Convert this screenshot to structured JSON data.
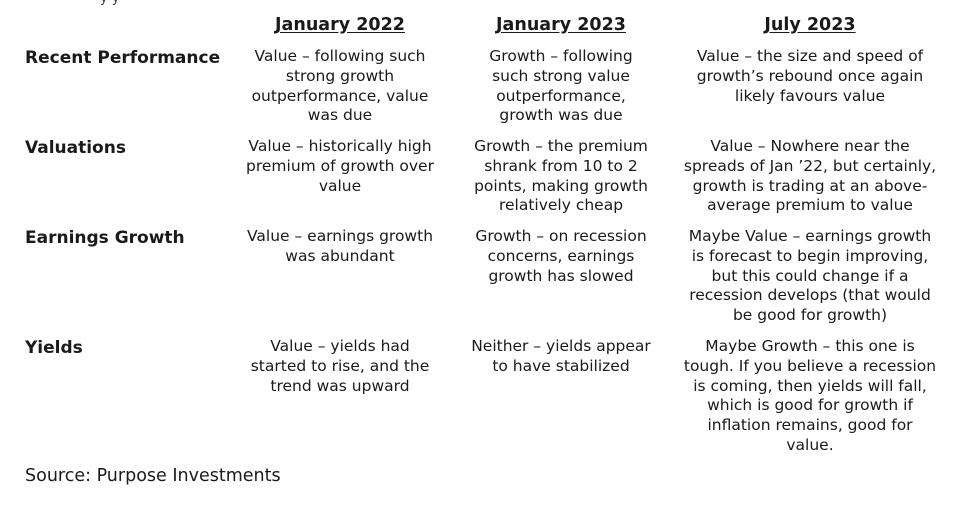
{
  "top_fragment": "y y",
  "columns": [
    "January 2022",
    "January 2023",
    "July 2023"
  ],
  "rows": [
    {
      "label": "Recent Performance",
      "cells": [
        "Value – following such\nstrong growth\noutperformance, value\nwas due",
        "Growth – following\nsuch strong value\noutperformance,\ngrowth was due",
        "Value – the size and speed of\ngrowth’s rebound once again\nlikely favours value"
      ]
    },
    {
      "label": "Valuations",
      "cells": [
        "Value – historically high\npremium of growth over\nvalue",
        "Growth – the premium\nshrank from 10 to 2\npoints, making growth\nrelatively cheap",
        "Value – Nowhere near the\nspreads of Jan ’22, but certainly,\ngrowth is trading at an above-\naverage premium to value"
      ]
    },
    {
      "label": "Earnings Growth",
      "cells": [
        "Value – earnings growth\nwas abundant",
        "Growth – on recession\nconcerns, earnings\ngrowth has slowed",
        "Maybe Value – earnings growth\nis forecast to begin improving,\nbut this could change if a\nrecession develops (that would\nbe good for growth)"
      ]
    },
    {
      "label": "Yields",
      "cells": [
        "Value – yields had\nstarted to rise, and the\ntrend was upward",
        "Neither – yields appear\nto have stabilized",
        "Maybe Growth – this one is\ntough. If you believe a recession\nis coming, then yields will fall,\nwhich is good for growth if\ninflation remains, good for\nvalue."
      ]
    }
  ],
  "source": "Source: Purpose Investments"
}
